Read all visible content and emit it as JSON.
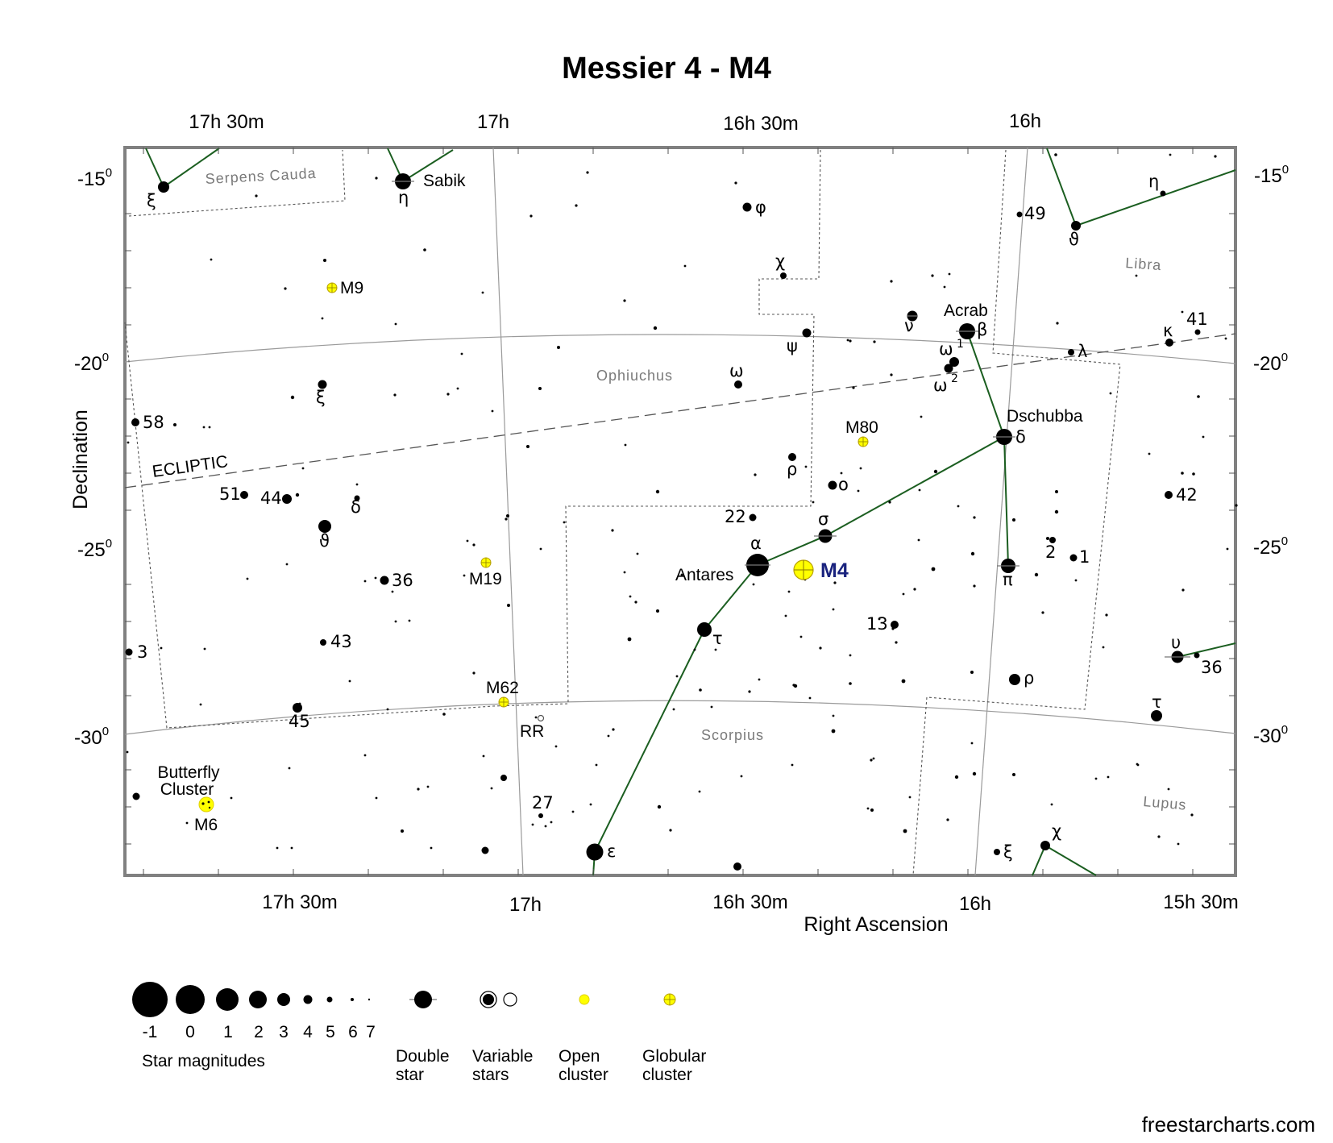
{
  "title": "Messier 4 - M4",
  "credit": "freestarcharts.com",
  "axes": {
    "xlabel": "Right Ascension",
    "ylabel": "Declination",
    "ra_top": [
      "17h 30m",
      "17h",
      "16h 30m",
      "16h"
    ],
    "ra_bottom": [
      "17h 30m",
      "17h",
      "16h 30m",
      "16h",
      "15h 30m"
    ],
    "dec": [
      {
        "deg": "-15",
        "sup": "0"
      },
      {
        "deg": "-20",
        "sup": "0"
      },
      {
        "deg": "-25",
        "sup": "0"
      },
      {
        "deg": "-30",
        "sup": "0"
      }
    ]
  },
  "constellations": [
    "Serpens Cauda",
    "Ophiuchus",
    "Scorpius",
    "Libra",
    "Lupus"
  ],
  "ecliptic_label": "ECLIPTIC",
  "objects": {
    "m4": "M4",
    "m9": "M9",
    "m19": "M19",
    "m62": "M62",
    "m80": "M80",
    "m6": "M6",
    "butterfly": [
      "Butterfly",
      "Cluster"
    ],
    "rr": "RR"
  },
  "star_names": {
    "sabik": "Sabik",
    "antares": "Antares",
    "acrab": "Acrab",
    "dschubba": "Dschubba"
  },
  "star_labels": [
    {
      "id": "xi-ser",
      "text": "ξ"
    },
    {
      "id": "eta-oph",
      "text": "η"
    },
    {
      "id": "phi",
      "text": "φ"
    },
    {
      "id": "chi-oph",
      "text": "χ"
    },
    {
      "id": "psi",
      "text": "ψ"
    },
    {
      "id": "omega-oph",
      "text": "ω"
    },
    {
      "id": "rho-oph",
      "text": "ρ"
    },
    {
      "id": "omicron",
      "text": "ο"
    },
    {
      "id": "s22",
      "text": "22"
    },
    {
      "id": "sigma",
      "text": "σ"
    },
    {
      "id": "alpha",
      "text": "α"
    },
    {
      "id": "tau-sco",
      "text": "τ"
    },
    {
      "id": "s13",
      "text": "13"
    },
    {
      "id": "nu",
      "text": "ν"
    },
    {
      "id": "beta",
      "text": "β"
    },
    {
      "id": "omega1",
      "text": "ω"
    },
    {
      "id": "omega1-sup",
      "text": "1"
    },
    {
      "id": "omega2",
      "text": "ω"
    },
    {
      "id": "omega2-sup",
      "text": "2"
    },
    {
      "id": "delta",
      "text": "δ"
    },
    {
      "id": "pi",
      "text": "π"
    },
    {
      "id": "rho-sco",
      "text": "ρ"
    },
    {
      "id": "s2",
      "text": "2"
    },
    {
      "id": "s1",
      "text": "1"
    },
    {
      "id": "s49",
      "text": "49"
    },
    {
      "id": "theta-lib",
      "text": "ϑ"
    },
    {
      "id": "eta-lib",
      "text": "η"
    },
    {
      "id": "lambda",
      "text": "λ"
    },
    {
      "id": "kappa",
      "text": "κ"
    },
    {
      "id": "s41",
      "text": "41"
    },
    {
      "id": "s42",
      "text": "42"
    },
    {
      "id": "upsilon",
      "text": "υ"
    },
    {
      "id": "s36-lup",
      "text": "36"
    },
    {
      "id": "tau-lup",
      "text": "τ"
    },
    {
      "id": "xi-oph",
      "text": "ξ"
    },
    {
      "id": "s58",
      "text": "58"
    },
    {
      "id": "s51",
      "text": "51"
    },
    {
      "id": "s44",
      "text": "44"
    },
    {
      "id": "delta-oph",
      "text": "δ"
    },
    {
      "id": "theta-oph",
      "text": "ϑ"
    },
    {
      "id": "s36-oph",
      "text": "36"
    },
    {
      "id": "s43",
      "text": "43"
    },
    {
      "id": "s3",
      "text": "3"
    },
    {
      "id": "s45",
      "text": "45"
    },
    {
      "id": "epsilon",
      "text": "ε"
    },
    {
      "id": "s27",
      "text": "27"
    },
    {
      "id": "xi-sco",
      "text": "ξ"
    },
    {
      "id": "chi-sco",
      "text": "χ"
    }
  ],
  "legend": {
    "magnitudes": [
      "-1",
      "0",
      "1",
      "2",
      "3",
      "4",
      "5",
      "6",
      "7"
    ],
    "magnitudes_title": "Star magnitudes",
    "double_star": [
      "Double",
      "star"
    ],
    "variable_stars": [
      "Variable",
      "stars"
    ],
    "open_cluster": [
      "Open",
      "cluster"
    ],
    "globular_cluster": [
      "Globular",
      "cluster"
    ]
  },
  "colors": {
    "frame": "#808080",
    "grid": "#9a9a9a",
    "constellation_line": "#1b5e20",
    "cluster_fill": "#ffff00",
    "cluster_stroke": "#b8a000",
    "m4_label": "#1a237e"
  }
}
